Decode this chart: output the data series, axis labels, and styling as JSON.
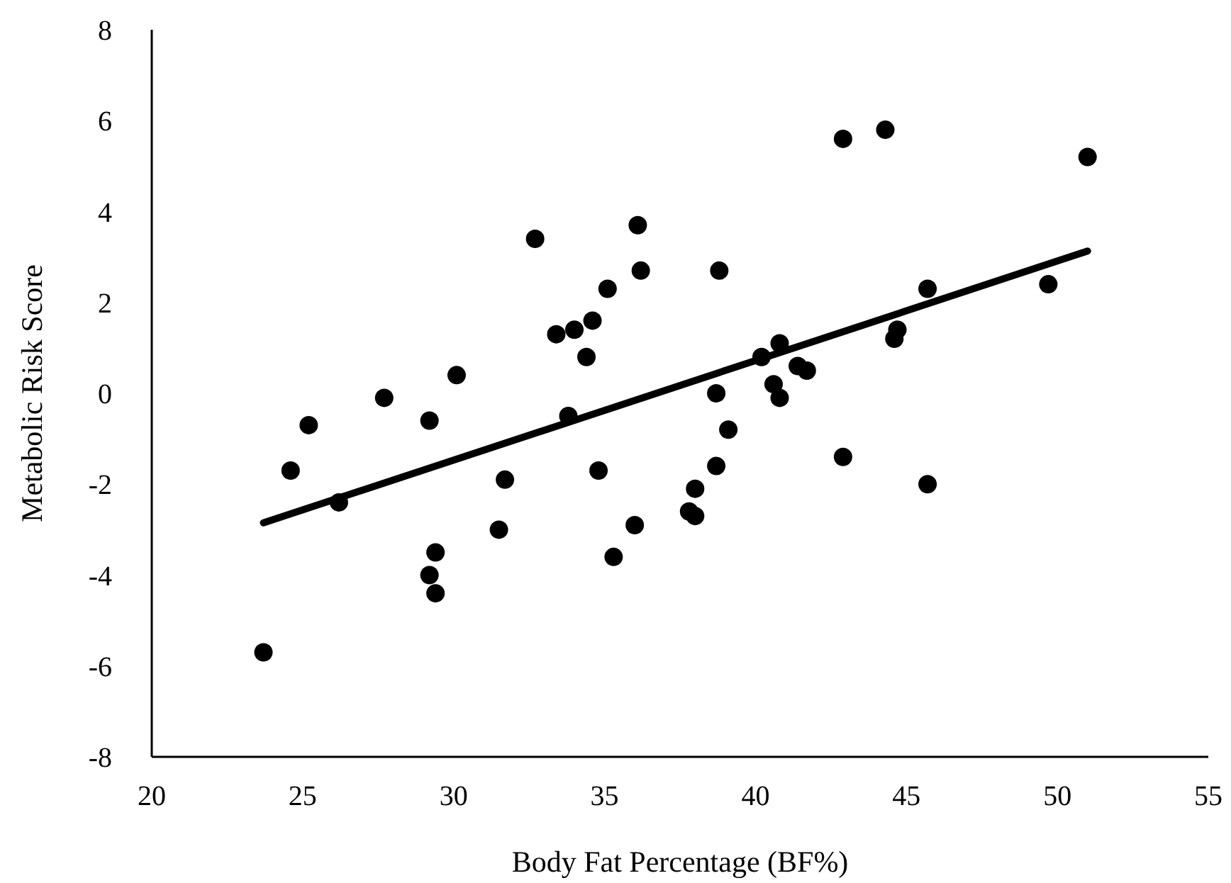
{
  "chart_data": {
    "type": "scatter",
    "xlabel": "Body Fat Percentage (BF%)",
    "ylabel": "Metabolic Risk Score",
    "xlim": [
      20,
      55
    ],
    "ylim": [
      -8,
      8
    ],
    "xticks": [
      20,
      25,
      30,
      35,
      40,
      45,
      50,
      55
    ],
    "yticks": [
      -8,
      -6,
      -4,
      -2,
      0,
      2,
      4,
      6,
      8
    ],
    "grid": false,
    "legend": false,
    "series": [
      {
        "color": "#000000",
        "marker": "circle",
        "x": [
          32.7,
          36.1,
          36.2,
          35.1,
          33.4,
          34.0,
          34.6,
          34.4,
          30.1,
          27.7,
          29.2,
          25.2,
          33.8,
          42.9,
          44.3,
          51.0,
          38.8,
          45.7,
          49.7,
          44.7,
          44.6,
          40.8,
          40.2,
          41.4,
          41.7,
          38.7,
          40.6,
          40.8,
          39.1,
          24.6,
          26.2,
          31.7,
          34.8,
          31.5,
          36.0,
          35.3,
          29.4,
          29.2,
          29.4,
          23.7,
          38.7,
          38.0,
          37.8,
          38.0,
          42.9,
          45.7
        ],
        "values": [
          3.4,
          3.7,
          2.7,
          2.3,
          1.3,
          1.4,
          1.6,
          0.8,
          0.4,
          -0.1,
          -0.6,
          -0.7,
          -0.5,
          5.6,
          5.8,
          5.2,
          2.7,
          2.3,
          2.4,
          1.4,
          1.2,
          1.1,
          0.8,
          0.6,
          0.5,
          0.0,
          0.2,
          -0.1,
          -0.8,
          -1.7,
          -2.4,
          -1.9,
          -1.7,
          -3.0,
          -2.9,
          -3.6,
          -3.5,
          -4.0,
          -4.4,
          -5.7,
          -1.6,
          -2.1,
          -2.6,
          -2.7,
          -1.4,
          -2.0
        ]
      },
      {
        "type": "line",
        "color": "#000000",
        "marker": "none",
        "line_style": "solid",
        "x": [
          23.7,
          51.0
        ],
        "values": [
          -2.85,
          3.13
        ]
      }
    ]
  }
}
